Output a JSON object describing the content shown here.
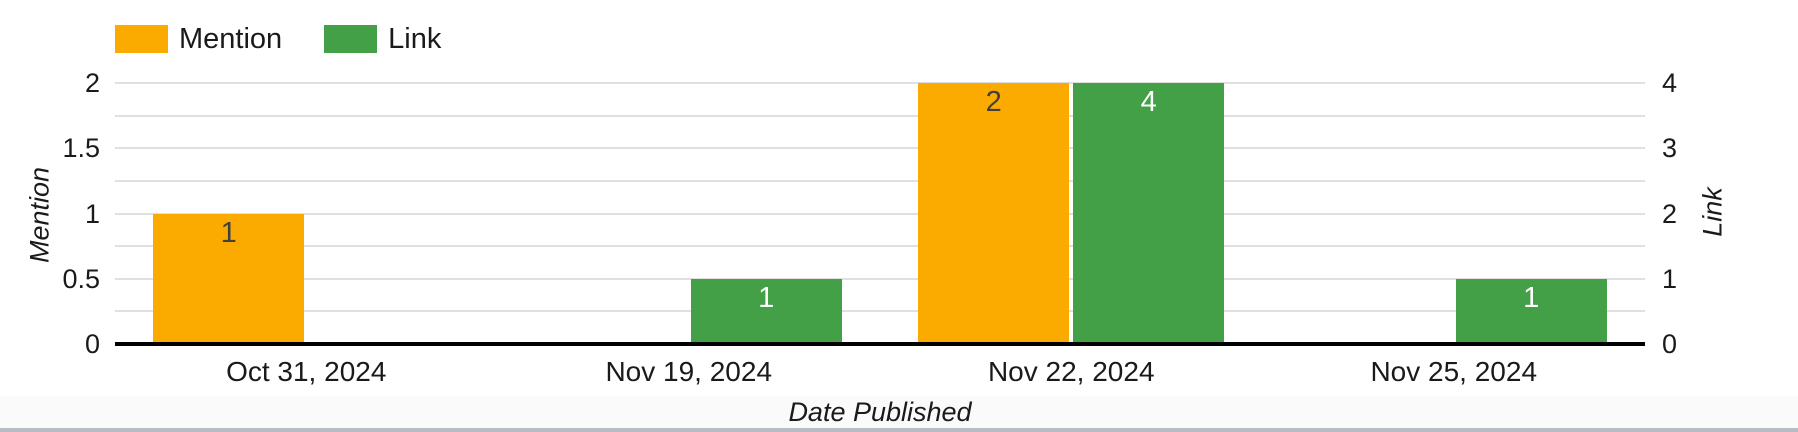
{
  "chart_data": {
    "type": "bar",
    "categories": [
      "Oct 31, 2024",
      "Nov 19, 2024",
      "Nov 22, 2024",
      "Nov 25, 2024"
    ],
    "series": [
      {
        "name": "Mention",
        "axis": "left",
        "color": "#FBAB00",
        "value_label_color": "#404040",
        "values": [
          1,
          null,
          2,
          null
        ]
      },
      {
        "name": "Link",
        "axis": "right",
        "color": "#43A047",
        "value_label_color": "#FFFFFF",
        "values": [
          null,
          1,
          4,
          1
        ]
      }
    ],
    "xlabel": "Date Published",
    "left_axis": {
      "title": "Mention",
      "min": 0,
      "max": 2,
      "ticks": [
        0,
        0.5,
        1,
        1.5,
        2
      ],
      "gridline_step": 0.25
    },
    "right_axis": {
      "title": "Link",
      "min": 0,
      "max": 4,
      "ticks": [
        0,
        1,
        2,
        3,
        4
      ]
    },
    "grid": true,
    "legend_position": "top-left",
    "legend": [
      {
        "label": "Mention",
        "color": "#FBAB00"
      },
      {
        "label": "Link",
        "color": "#43A047"
      }
    ]
  },
  "styles": {
    "gridline_color": "#e0e0e0",
    "axis_line_color": "#000000",
    "text_color": "#1a1a1a",
    "footer_background": "#fafafa",
    "footer_divider": "#b7bcc3"
  }
}
